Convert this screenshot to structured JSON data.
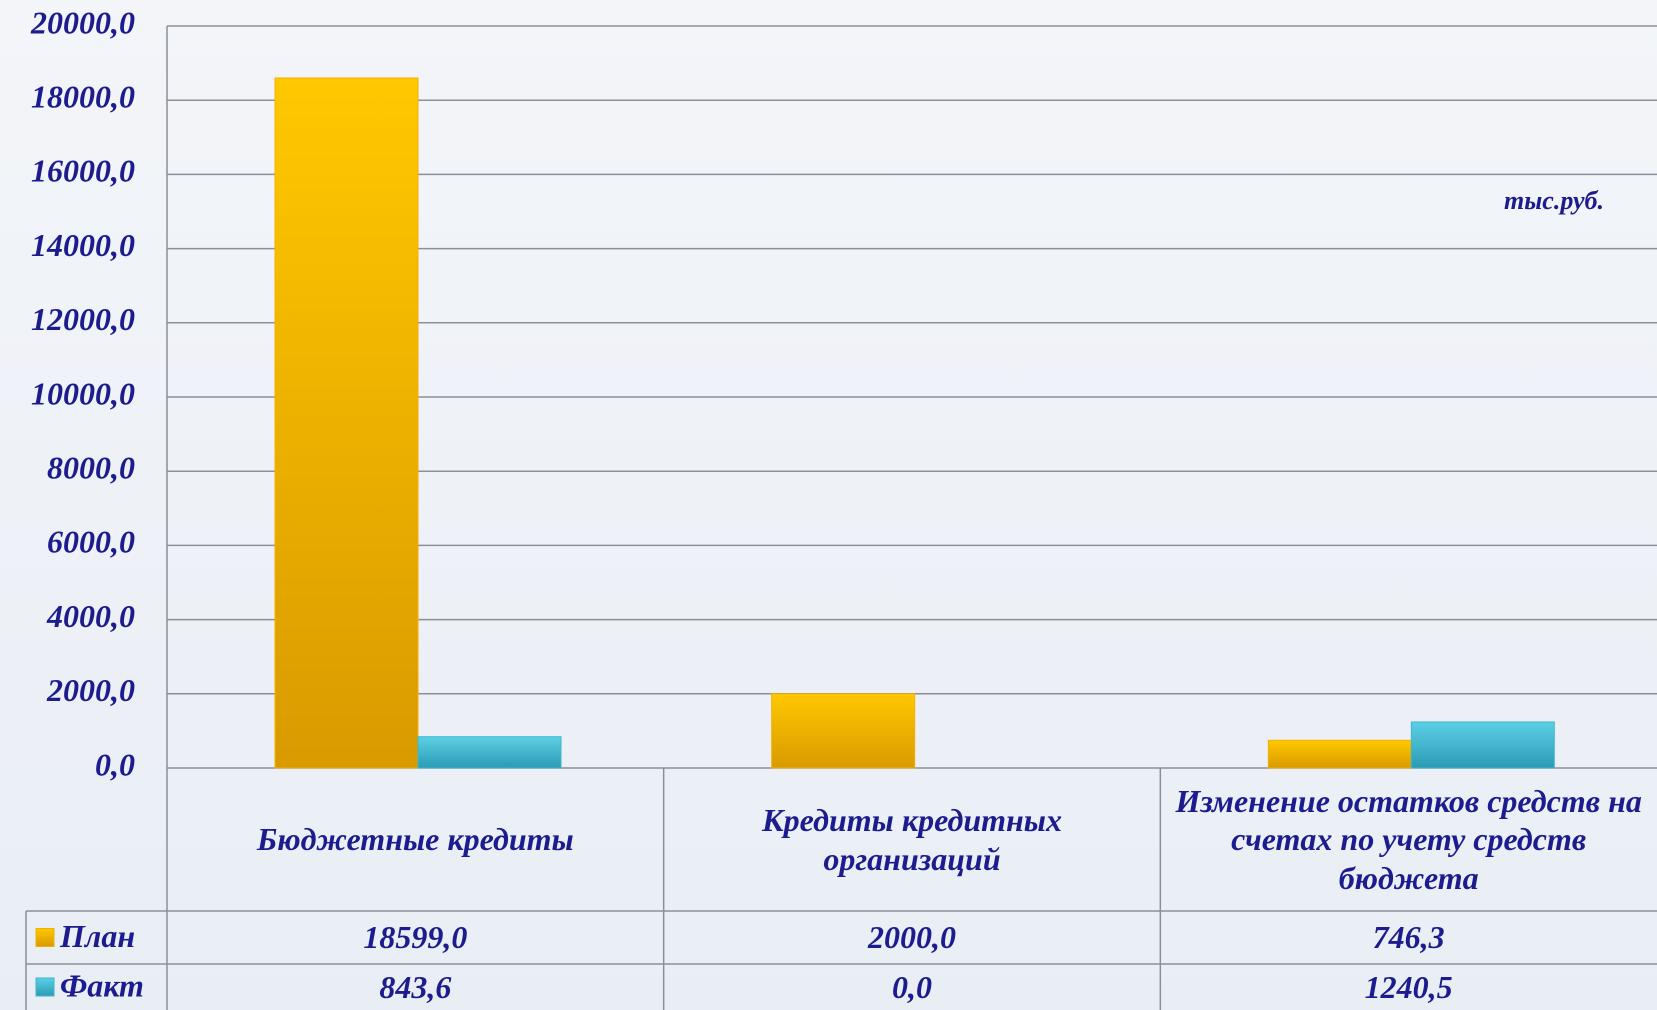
{
  "chart_data": {
    "type": "bar",
    "annotation": "тыс.руб.",
    "categories": [
      "Бюджетные кредиты",
      "Кредиты кредитных организаций",
      "Изменение остатков средств на счетах по учету средств бюджета"
    ],
    "series": [
      {
        "name": "План",
        "color": "#f2b100",
        "values": [
          18599.0,
          2000.0,
          746.3
        ],
        "value_labels": [
          "18599,0",
          "2000,0",
          "746,3"
        ]
      },
      {
        "name": "Факт",
        "color": "#3fb6cf",
        "values": [
          843.6,
          0.0,
          1240.5
        ],
        "value_labels": [
          "843,6",
          "0,0",
          "1240,5"
        ]
      }
    ],
    "ylim": [
      0,
      20000
    ],
    "yticks": [
      {
        "value": 0,
        "label": "0,0"
      },
      {
        "value": 2000,
        "label": "2000,0"
      },
      {
        "value": 4000,
        "label": "4000,0"
      },
      {
        "value": 6000,
        "label": "6000,0"
      },
      {
        "value": 8000,
        "label": "8000,0"
      },
      {
        "value": 10000,
        "label": "10000,0"
      },
      {
        "value": 12000,
        "label": "12000,0"
      },
      {
        "value": 14000,
        "label": "14000,0"
      },
      {
        "value": 16000,
        "label": "16000,0"
      },
      {
        "value": 18000,
        "label": "18000,0"
      },
      {
        "value": 20000,
        "label": "20000,0"
      }
    ],
    "grid": true
  }
}
